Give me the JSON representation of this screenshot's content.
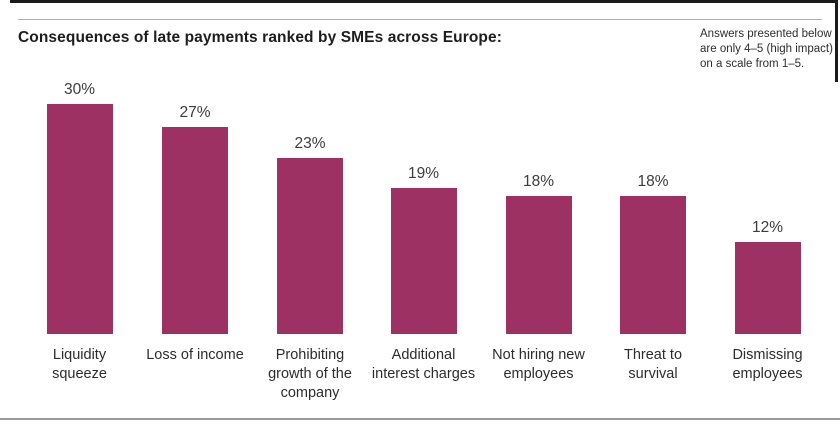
{
  "header": {
    "title": "Consequences of late payments ranked by SMEs across Europe:",
    "note_lines": [
      "Answers presented below",
      "are only 4–5 (high impact)",
      "on a scale from 1–5."
    ]
  },
  "chart_data": {
    "type": "bar",
    "title": "Consequences of late payments ranked by SMEs across Europe:",
    "annotation": "Answers presented below are only 4–5 (high impact) on a scale from 1–5.",
    "categories": [
      "Liquidity squeeze",
      "Loss of income",
      "Prohibiting growth of the company",
      "Additional interest charges",
      "Not hiring new employees",
      "Threat to survival",
      "Dismissing employees"
    ],
    "category_lines": [
      [
        "Liquidity",
        "squeeze"
      ],
      [
        "Loss of income"
      ],
      [
        "Prohibiting",
        "growth of the",
        "company"
      ],
      [
        "Additional",
        "interest charges"
      ],
      [
        "Not hiring new",
        "employees"
      ],
      [
        "Threat to",
        "survival"
      ],
      [
        "Dismissing",
        "employees"
      ]
    ],
    "values": [
      30,
      27,
      23,
      19,
      18,
      18,
      12
    ],
    "value_labels": [
      "30%",
      "27%",
      "23%",
      "19%",
      "18%",
      "18%",
      "12%"
    ],
    "unit": "%",
    "ylim": [
      0,
      30
    ],
    "grid": false,
    "legend": false,
    "bar_color": "#9d3164"
  }
}
